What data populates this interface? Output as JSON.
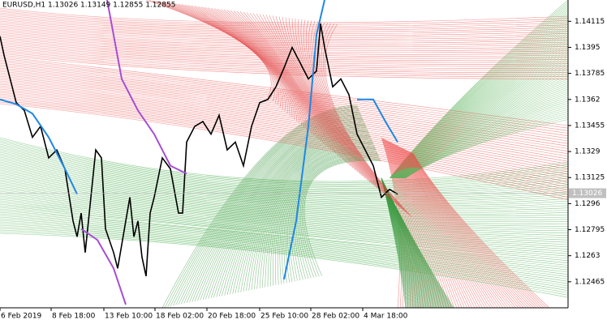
{
  "chart_data": {
    "type": "line",
    "title": "EURUSD,H1  1.13026 1.13149 1.12855 1.12855",
    "last_price": 1.13026,
    "ylim": [
      1.123,
      1.1425
    ],
    "yticks": [
      1.14115,
      1.1395,
      1.13785,
      1.1362,
      1.13455,
      1.1329,
      1.13125,
      1.1296,
      1.12795,
      1.1263,
      1.12465
    ],
    "xlim": [
      0,
      700
    ],
    "xticks": [
      {
        "value": 0,
        "label": "6 Feb 2019"
      },
      {
        "value": 63,
        "label": "8 Feb 18:00"
      },
      {
        "value": 128,
        "label": "13 Feb 10:00"
      },
      {
        "value": 191,
        "label": "18 Feb 02:00"
      },
      {
        "value": 255,
        "label": "20 Feb 18:00"
      },
      {
        "value": 320,
        "label": "25 Feb 10:00"
      },
      {
        "value": 383,
        "label": "28 Feb 02:00"
      },
      {
        "value": 447,
        "label": "4 Mar 18:00"
      }
    ],
    "series": [
      {
        "color": "#000000",
        "x": [
          0,
          5,
          10,
          20,
          30,
          40,
          50,
          60,
          70,
          80,
          90,
          95,
          100,
          105,
          110,
          118,
          125,
          130,
          140,
          145,
          150,
          155,
          160,
          165,
          170,
          175,
          180,
          185,
          190,
          200,
          210,
          220,
          225,
          230,
          240,
          250,
          260,
          270,
          280,
          290,
          300,
          310,
          320,
          330,
          340,
          350,
          360,
          370,
          380,
          390,
          395,
          400,
          410,
          420,
          430,
          440,
          450,
          460,
          470,
          480,
          490
        ],
        "values": [
          1.1402,
          1.139,
          1.138,
          1.136,
          1.1355,
          1.1338,
          1.1345,
          1.1325,
          1.133,
          1.1318,
          1.1285,
          1.1275,
          1.129,
          1.1265,
          1.129,
          1.133,
          1.1325,
          1.128,
          1.1265,
          1.1255,
          1.127,
          1.1285,
          1.13,
          1.1275,
          1.1285,
          1.1262,
          1.125,
          1.129,
          1.13,
          1.1325,
          1.1318,
          1.129,
          1.129,
          1.1335,
          1.1345,
          1.1348,
          1.134,
          1.1352,
          1.133,
          1.1335,
          1.132,
          1.1345,
          1.136,
          1.1362,
          1.137,
          1.1382,
          1.1395,
          1.1385,
          1.1375,
          1.138,
          1.141,
          1.1395,
          1.137,
          1.1375,
          1.1365,
          1.134,
          1.133,
          1.132,
          1.13,
          1.1305,
          1.1302
        ]
      },
      {
        "color": "#1e88e5",
        "x": [
          0,
          20,
          40,
          60,
          80,
          95,
          96,
          350,
          365,
          380,
          390,
          400,
          401,
          440,
          460,
          475,
          490
        ],
        "values": [
          1.1362,
          1.1359,
          1.1353,
          1.1338,
          1.1318,
          1.1302,
          null,
          1.1248,
          1.1285,
          1.1345,
          1.1403,
          1.1425,
          null,
          1.1362,
          1.1362,
          1.1348,
          1.1335
        ]
      },
      {
        "color": "#a64dd6",
        "x": [
          132,
          150,
          170,
          190,
          210,
          230,
          231,
          100,
          120,
          140,
          155
        ],
        "values": [
          1.1425,
          1.1375,
          1.1355,
          1.134,
          1.132,
          1.1315,
          null,
          1.128,
          1.1273,
          1.1255,
          1.1232
        ]
      }
    ]
  }
}
